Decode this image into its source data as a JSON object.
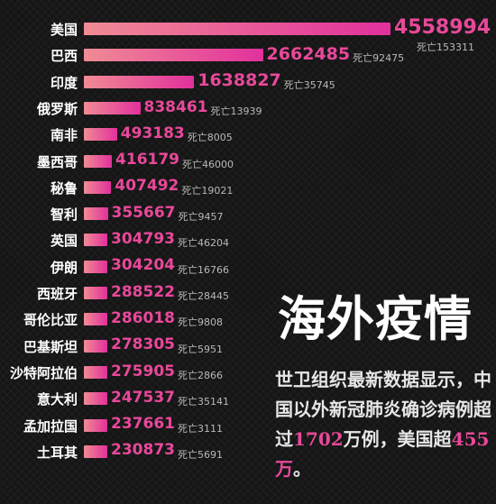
{
  "chart_data": {
    "type": "bar",
    "orientation": "horizontal",
    "death_prefix": "死亡",
    "categories": [
      "美国",
      "巴西",
      "印度",
      "俄罗斯",
      "南非",
      "墨西哥",
      "秘鲁",
      "智利",
      "英国",
      "伊朗",
      "西班牙",
      "哥伦比亚",
      "巴基斯坦",
      "沙特阿拉伯",
      "意大利",
      "孟加拉国",
      "土耳其"
    ],
    "series": [
      {
        "values": [
          4558994,
          2662485,
          1638827,
          838461,
          493183,
          416179,
          407492,
          355667,
          304793,
          304204,
          288522,
          286018,
          278305,
          275905,
          247537,
          237661,
          230873
        ]
      },
      {
        "values": [
          153311,
          92475,
          35745,
          13939,
          8005,
          46000,
          19021,
          9457,
          46204,
          16766,
          28445,
          9808,
          5951,
          2866,
          35141,
          3111,
          5691
        ]
      }
    ],
    "colors": {
      "bar_start": "#f08b94",
      "bar_end": "#e2309c",
      "value": "#e9489a",
      "death": "#b9b9b9"
    }
  },
  "headline": "海外疫情",
  "summary": {
    "part1": "世卫组织最新数据显示，中国以外新冠肺炎确诊病例超过",
    "num1": "1702",
    "part2": "万例，美国超",
    "num2": "455万",
    "part3": "。"
  }
}
